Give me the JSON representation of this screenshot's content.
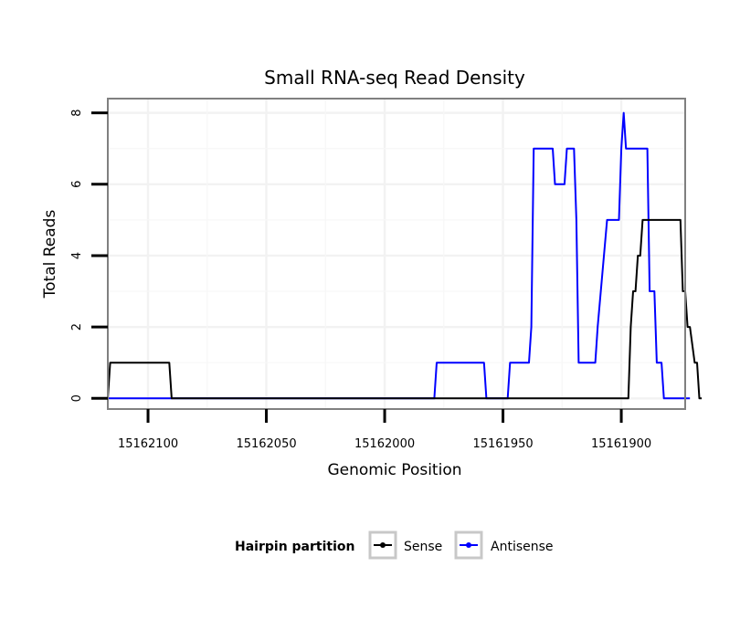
{
  "chart_data": {
    "type": "line",
    "title": "Small RNA-seq Read Density",
    "xlabel": "Genomic Position",
    "ylabel": "Total Reads",
    "x_reversed": true,
    "xlim": [
      15162117,
      15161873
    ],
    "ylim": [
      -0.3,
      8.4
    ],
    "xticks": [
      15162100,
      15162050,
      15162000,
      15161950,
      15161900
    ],
    "xtick_labels": [
      "15162100",
      "15162050",
      "15162000",
      "15161950",
      "15161900"
    ],
    "yticks": [
      0,
      2,
      4,
      6,
      8
    ],
    "ytick_labels": [
      "0",
      "2",
      "4",
      "6",
      "8"
    ],
    "grid": true,
    "legend": {
      "title": "Hairpin partition",
      "position": "bottom"
    },
    "series": [
      {
        "name": "Sense",
        "color": "#000000",
        "x": [
          15162117,
          15162116,
          15162091,
          15162090,
          15161897,
          15161896,
          15161895,
          15161894,
          15161893,
          15161892,
          15161891,
          15161889,
          15161888,
          15161875,
          15161874,
          15161873,
          15161872,
          15161871,
          15161869,
          15161868,
          15161867,
          15161866
        ],
        "y": [
          0,
          1,
          1,
          0,
          0,
          2,
          3,
          3,
          4,
          4,
          5,
          5,
          5,
          5,
          3,
          3,
          2,
          2,
          1,
          1,
          0,
          0
        ]
      },
      {
        "name": "Antisense",
        "color": "#0000ff",
        "x": [
          15162117,
          15162090,
          15161979,
          15161978,
          15161958,
          15161957,
          15161948,
          15161947,
          15161939,
          15161938,
          15161937,
          15161929,
          15161928,
          15161924,
          15161923,
          15161920,
          15161919,
          15161918,
          15161917,
          15161916,
          15161911,
          15161910,
          15161906,
          15161905,
          15161901,
          15161900,
          15161899,
          15161898,
          15161897,
          15161889,
          15161888,
          15161886,
          15161885,
          15161883,
          15161882,
          15161871
        ],
        "y": [
          0,
          0,
          0,
          1,
          1,
          0,
          0,
          1,
          1,
          2,
          7,
          7,
          6,
          6,
          7,
          7,
          5,
          1,
          1,
          1,
          1,
          2,
          5,
          5,
          5,
          7,
          8,
          7,
          7,
          7,
          3,
          3,
          1,
          1,
          0,
          0
        ]
      }
    ]
  }
}
